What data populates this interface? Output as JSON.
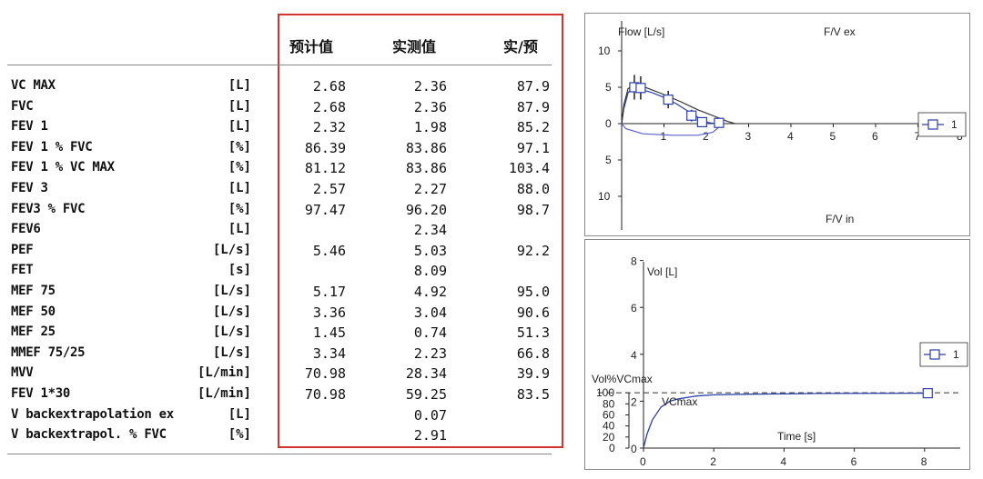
{
  "table": {
    "headers": {
      "predicted": "预计值",
      "measured": "实测值",
      "ratio": "实/预"
    },
    "rows": [
      {
        "name": "VC MAX",
        "unit": "[L]",
        "pred": "2.68",
        "meas": "2.36",
        "ratio": "87.9"
      },
      {
        "name": "FVC",
        "unit": "[L]",
        "pred": "2.68",
        "meas": "2.36",
        "ratio": "87.9"
      },
      {
        "name": "FEV 1",
        "unit": "[L]",
        "pred": "2.32",
        "meas": "1.98",
        "ratio": "85.2"
      },
      {
        "name": "FEV 1 % FVC",
        "unit": "[%]",
        "pred": "86.39",
        "meas": "83.86",
        "ratio": "97.1"
      },
      {
        "name": "FEV 1 % VC MAX",
        "unit": "[%]",
        "pred": "81.12",
        "meas": "83.86",
        "ratio": "103.4"
      },
      {
        "name": "FEV 3",
        "unit": "[L]",
        "pred": "2.57",
        "meas": "2.27",
        "ratio": "88.0"
      },
      {
        "name": "FEV3 % FVC",
        "unit": "[%]",
        "pred": "97.47",
        "meas": "96.20",
        "ratio": "98.7"
      },
      {
        "name": "FEV6",
        "unit": "[L]",
        "pred": "",
        "meas": "2.34",
        "ratio": ""
      },
      {
        "name": "PEF",
        "unit": "[L/s]",
        "pred": "5.46",
        "meas": "5.03",
        "ratio": "92.2"
      },
      {
        "name": "FET",
        "unit": "[s]",
        "pred": "",
        "meas": "8.09",
        "ratio": ""
      },
      {
        "name": "MEF 75",
        "unit": "[L/s]",
        "pred": "5.17",
        "meas": "4.92",
        "ratio": "95.0"
      },
      {
        "name": "MEF 50",
        "unit": "[L/s]",
        "pred": "3.36",
        "meas": "3.04",
        "ratio": "90.6"
      },
      {
        "name": "MEF 25",
        "unit": "[L/s]",
        "pred": "1.45",
        "meas": "0.74",
        "ratio": "51.3"
      },
      {
        "name": "MMEF 75/25",
        "unit": "[L/s]",
        "pred": "3.34",
        "meas": "2.23",
        "ratio": "66.8"
      },
      {
        "name": "MVV",
        "unit": "[L/min]",
        "pred": "70.98",
        "meas": "28.34",
        "ratio": "39.9"
      },
      {
        "name": "FEV 1*30",
        "unit": "[L/min]",
        "pred": "70.98",
        "meas": "59.25",
        "ratio": "83.5"
      },
      {
        "name": "V backextrapolation ex",
        "unit": "[L]",
        "pred": "",
        "meas": "0.07",
        "ratio": ""
      },
      {
        "name": "V backextrapol. % FVC",
        "unit": "[%]",
        "pred": "",
        "meas": "2.91",
        "ratio": ""
      }
    ]
  },
  "chart_data": [
    {
      "type": "line",
      "title": "F/V ex",
      "bottom_label": "F/V in",
      "ylabel": "Flow [L/s]",
      "xlim": [
        0,
        8
      ],
      "ylim": [
        -12,
        12
      ],
      "x_ticks": [
        "1",
        "2",
        "3",
        "4",
        "5",
        "6",
        "7",
        "8"
      ],
      "y_ticks": [
        "10",
        "5",
        "0",
        "5",
        "10"
      ],
      "legend": {
        "label": "1",
        "position": "right"
      },
      "series": [
        {
          "role": "measured-expiratory",
          "points": [
            [
              0,
              0
            ],
            [
              0.05,
              2.0
            ],
            [
              0.15,
              4.2
            ],
            [
              0.25,
              5.0
            ],
            [
              0.4,
              4.8
            ],
            [
              0.7,
              4.3
            ],
            [
              1.0,
              3.6
            ],
            [
              1.3,
              2.7
            ],
            [
              1.6,
              1.6
            ],
            [
              1.85,
              0.7
            ],
            [
              2.05,
              0.15
            ],
            [
              2.2,
              0.0
            ]
          ]
        },
        {
          "role": "predicted-expiratory",
          "points": [
            [
              0,
              0
            ],
            [
              0.05,
              2.5
            ],
            [
              0.15,
              4.8
            ],
            [
              0.3,
              5.4
            ],
            [
              0.6,
              4.9
            ],
            [
              1.0,
              4.0
            ],
            [
              1.4,
              3.0
            ],
            [
              1.8,
              1.9
            ],
            [
              2.2,
              1.0
            ],
            [
              2.5,
              0.3
            ],
            [
              2.68,
              0.0
            ]
          ]
        },
        {
          "role": "measured-inspiratory",
          "points": [
            [
              0,
              0
            ],
            [
              0.1,
              -0.7
            ],
            [
              0.5,
              -1.4
            ],
            [
              1.2,
              -1.6
            ],
            [
              1.8,
              -1.6
            ],
            [
              2.15,
              -1.2
            ],
            [
              2.3,
              -0.5
            ],
            [
              2.3,
              0.0
            ]
          ]
        }
      ],
      "markers": [
        {
          "x": 0.3,
          "y": 5.0,
          "err": 1.7
        },
        {
          "x": 0.45,
          "y": 4.9,
          "err": 1.6
        },
        {
          "x": 1.1,
          "y": 3.3,
          "err": 1.2
        },
        {
          "x": 1.65,
          "y": 1.1,
          "err": 0.8
        },
        {
          "x": 1.9,
          "y": 0.2,
          "err": 0.6
        },
        {
          "x": 2.3,
          "y": 0.1,
          "err": 0
        }
      ]
    },
    {
      "type": "line",
      "ylabel": "Vol [L]",
      "ylabel2": "Vol%VCmax",
      "xlabel": "Time [s]",
      "annotation": "VCmax",
      "xlim": [
        0,
        9
      ],
      "ylim": [
        0,
        8
      ],
      "x_ticks": [
        "0",
        "2",
        "4",
        "6",
        "8"
      ],
      "y_ticks": [
        "0",
        "2",
        "4",
        "6",
        "8"
      ],
      "y_pct_ticks": [
        "100",
        "80",
        "60",
        "40",
        "20",
        "0"
      ],
      "legend": {
        "label": "1",
        "position": "right"
      },
      "reference_level": 2.36,
      "series": [
        {
          "role": "volume-time",
          "points": [
            [
              0,
              0
            ],
            [
              0.1,
              0.6
            ],
            [
              0.25,
              1.2
            ],
            [
              0.5,
              1.75
            ],
            [
              0.75,
              2.0
            ],
            [
              1.0,
              2.1
            ],
            [
              1.5,
              2.22
            ],
            [
              2.0,
              2.27
            ],
            [
              3.0,
              2.3
            ],
            [
              5.0,
              2.33
            ],
            [
              8.0,
              2.34
            ]
          ]
        }
      ],
      "markers": [
        {
          "x": 8.09,
          "y": 2.34
        }
      ]
    }
  ]
}
